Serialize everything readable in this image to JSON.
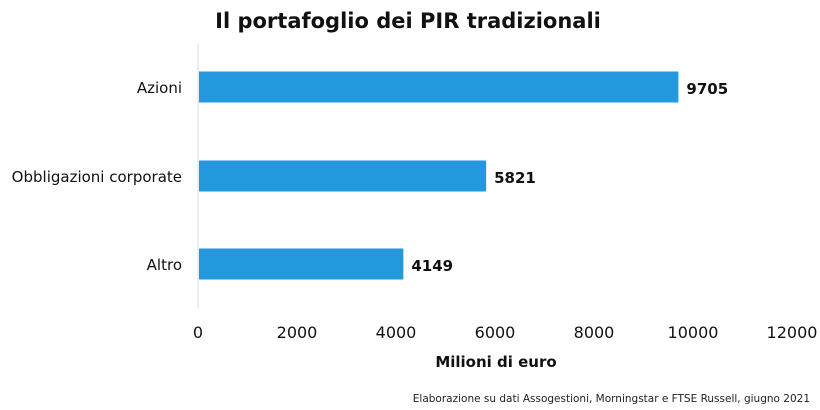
{
  "chart_data": {
    "type": "bar",
    "orientation": "horizontal",
    "title": "Il portafoglio dei PIR tradizionali",
    "categories": [
      "Azioni",
      "Obbligazioni corporate",
      "Altro"
    ],
    "values": [
      9705,
      5821,
      4149
    ],
    "data_labels": [
      "9705",
      "5821",
      "4149"
    ],
    "xlabel": "Milioni di euro",
    "ylabel": "",
    "xlim": [
      0,
      12000
    ],
    "x_ticks": [
      0,
      2000,
      4000,
      6000,
      8000,
      10000,
      12000
    ],
    "grid": false,
    "legend": "none",
    "bar_color": "#2398dc",
    "source_note": "Elaborazione su dati Assogestioni, Morningstar e FTSE Russell, giugno 2021"
  }
}
